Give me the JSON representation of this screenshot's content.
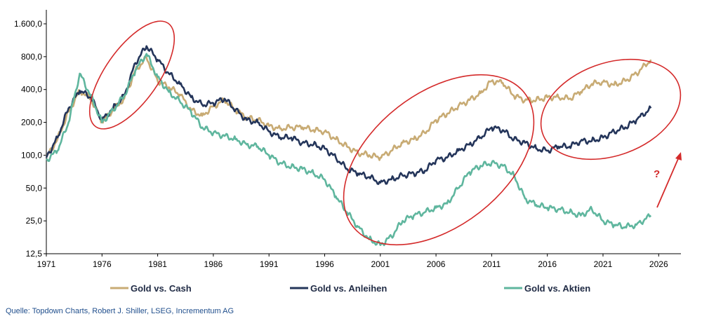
{
  "chart_data": {
    "type": "line",
    "title": "",
    "xlabel": "",
    "ylabel": "",
    "y_scale": "log",
    "xlim": [
      1971,
      2028
    ],
    "ylim": [
      12.5,
      2200
    ],
    "x_ticks": [
      "1971",
      "1976",
      "1981",
      "1986",
      "1991",
      "1996",
      "2001",
      "2006",
      "2011",
      "2016",
      "2021",
      "2026"
    ],
    "y_ticks": [
      "12,5",
      "25,0",
      "50,0",
      "100,0",
      "200,0",
      "400,0",
      "800,0",
      "1.600,0"
    ],
    "legend_position": "bottom",
    "series": [
      {
        "name": "Gold vs. Cash",
        "color": "#c8ab74",
        "x": [
          1971,
          1972,
          1973,
          1974,
          1975,
          1976,
          1977,
          1978,
          1979,
          1980,
          1981,
          1982,
          1983,
          1984,
          1985,
          1986,
          1987,
          1988,
          1989,
          1990,
          1991,
          1992,
          1993,
          1994,
          1995,
          1996,
          1997,
          1998,
          1999,
          2000,
          2001,
          2002,
          2003,
          2004,
          2005,
          2006,
          2007,
          2008,
          2009,
          2010,
          2011,
          2012,
          2013,
          2014,
          2015,
          2016,
          2017,
          2018,
          2019,
          2020,
          2021,
          2022,
          2023,
          2024,
          2025.3
        ],
        "y": [
          95,
          140,
          250,
          390,
          330,
          200,
          260,
          330,
          600,
          780,
          480,
          420,
          360,
          260,
          230,
          280,
          320,
          260,
          220,
          210,
          185,
          175,
          180,
          180,
          170,
          165,
          140,
          120,
          105,
          100,
          95,
          110,
          130,
          140,
          160,
          210,
          240,
          280,
          320,
          370,
          480,
          460,
          350,
          320,
          320,
          340,
          340,
          330,
          380,
          450,
          470,
          440,
          480,
          560,
          750
        ]
      },
      {
        "name": "Gold vs. Anleihen",
        "color": "#24355a",
        "x": [
          1971,
          1972,
          1973,
          1974,
          1975,
          1976,
          1977,
          1978,
          1979,
          1980,
          1981,
          1982,
          1983,
          1984,
          1985,
          1986,
          1987,
          1988,
          1989,
          1990,
          1991,
          1992,
          1993,
          1994,
          1995,
          1996,
          1997,
          1998,
          1999,
          2000,
          2001,
          2002,
          2003,
          2004,
          2005,
          2006,
          2007,
          2008,
          2009,
          2010,
          2011,
          2012,
          2013,
          2014,
          2015,
          2016,
          2017,
          2018,
          2019,
          2020,
          2021,
          2022,
          2023,
          2024,
          2025.3
        ],
        "y": [
          95,
          145,
          270,
          390,
          340,
          210,
          270,
          350,
          700,
          1000,
          750,
          560,
          450,
          340,
          290,
          300,
          330,
          260,
          210,
          200,
          165,
          145,
          145,
          130,
          125,
          115,
          95,
          75,
          68,
          63,
          56,
          60,
          65,
          68,
          72,
          90,
          95,
          110,
          125,
          145,
          180,
          170,
          140,
          130,
          115,
          110,
          120,
          120,
          135,
          135,
          145,
          165,
          180,
          210,
          270
        ]
      },
      {
        "name": "Gold vs. Aktien",
        "color": "#5fb69e",
        "x": [
          1971,
          1972,
          1973,
          1974,
          1975,
          1976,
          1977,
          1978,
          1979,
          1980,
          1981,
          1982,
          1983,
          1984,
          1985,
          1986,
          1987,
          1988,
          1989,
          1990,
          1991,
          1992,
          1993,
          1994,
          1995,
          1996,
          1997,
          1998,
          1999,
          2000,
          2001,
          2002,
          2003,
          2004,
          2005,
          2006,
          2007,
          2008,
          2009,
          2010,
          2011,
          2012,
          2013,
          2014,
          2015,
          2016,
          2017,
          2018,
          2019,
          2020,
          2021,
          2022,
          2023,
          2024,
          2025.3
        ],
        "y": [
          90,
          110,
          200,
          560,
          350,
          200,
          260,
          350,
          600,
          850,
          520,
          380,
          310,
          250,
          180,
          160,
          150,
          140,
          125,
          120,
          100,
          85,
          78,
          75,
          68,
          60,
          42,
          30,
          22,
          17,
          15,
          18,
          25,
          28,
          30,
          33,
          36,
          50,
          70,
          80,
          85,
          80,
          65,
          40,
          35,
          33,
          32,
          30,
          28,
          32,
          25,
          23,
          22,
          23,
          28
        ]
      }
    ],
    "annotations": [
      "?"
    ]
  },
  "legend": [
    {
      "label": "Gold vs. Cash",
      "color": "#c8ab74"
    },
    {
      "label": "Gold vs. Anleihen",
      "color": "#24355a"
    },
    {
      "label": "Gold vs. Aktien",
      "color": "#5fb69e"
    }
  ],
  "source": "Quelle: Topdown Charts, Robert J. Shiller, LSEG, Incrementum AG",
  "annotation_color": "#d42a2a"
}
